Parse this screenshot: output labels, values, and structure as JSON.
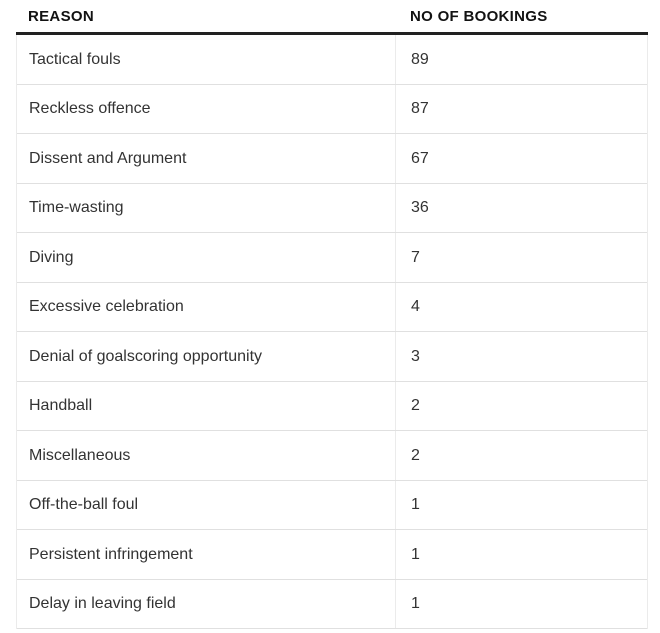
{
  "chart_data": {
    "type": "table",
    "title": "",
    "columns": [
      "REASON",
      "NO OF BOOKINGS"
    ],
    "rows": [
      [
        "Tactical fouls",
        89
      ],
      [
        "Reckless offence",
        87
      ],
      [
        "Dissent and Argument",
        67
      ],
      [
        "Time-wasting",
        36
      ],
      [
        "Diving",
        7
      ],
      [
        "Excessive celebration",
        4
      ],
      [
        "Denial of goalscoring opportunity",
        3
      ],
      [
        "Handball",
        2
      ],
      [
        "Miscellaneous",
        2
      ],
      [
        "Off-the-ball foul",
        1
      ],
      [
        "Persistent infringement",
        1
      ],
      [
        "Delay in leaving field",
        1
      ]
    ],
    "layout": {
      "grid": "horizontal row dividers with faint column divider",
      "header_rule": "thick dark line under header",
      "value_alignment": "left"
    }
  },
  "colors": {
    "header_text": "#121212",
    "header_rule": "#212121",
    "row_text": "#333333",
    "row_divider": "#e0e0e0",
    "column_divider": "#ebebeb",
    "page_bg": "#ffffff"
  }
}
